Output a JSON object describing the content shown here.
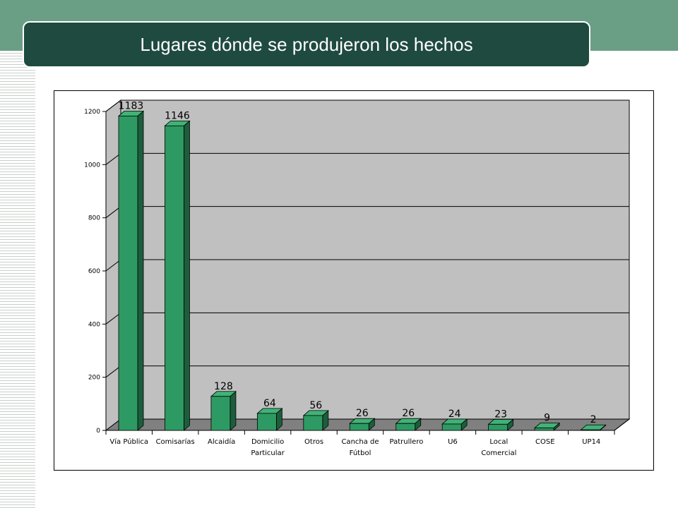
{
  "slide": {
    "title": "Lugares dónde se produjeron los hechos"
  },
  "colors": {
    "header_band": "#6a9f86",
    "title_bg": "#1f4a40",
    "plot_wall": "#c0c0c0",
    "plot_floor": "#808080",
    "bar_front": "#2e9a63",
    "bar_top": "#3fb376",
    "bar_side": "#1c5e3c"
  },
  "chart_data": {
    "type": "bar",
    "title": "",
    "xlabel": "",
    "ylabel": "",
    "ylim": [
      0,
      1200
    ],
    "yticks": [
      0,
      200,
      400,
      600,
      800,
      1000,
      1200
    ],
    "grid": true,
    "legend": "none",
    "categories": [
      [
        "Vía Pública"
      ],
      [
        "Comisarías"
      ],
      [
        "Alcaidía"
      ],
      [
        "Domicilio",
        "Particular"
      ],
      [
        "Otros"
      ],
      [
        "Cancha de",
        "Fútbol"
      ],
      [
        "Patrullero"
      ],
      [
        "U6"
      ],
      [
        "Local",
        "Comercial"
      ],
      [
        "COSE"
      ],
      [
        "UP14"
      ]
    ],
    "values": [
      1183,
      1146,
      128,
      64,
      56,
      26,
      26,
      24,
      23,
      9,
      2
    ],
    "data_labels": [
      "1183",
      "1146",
      "128",
      "64",
      "56",
      "26",
      "26",
      "24",
      "23",
      "9",
      "2"
    ]
  }
}
